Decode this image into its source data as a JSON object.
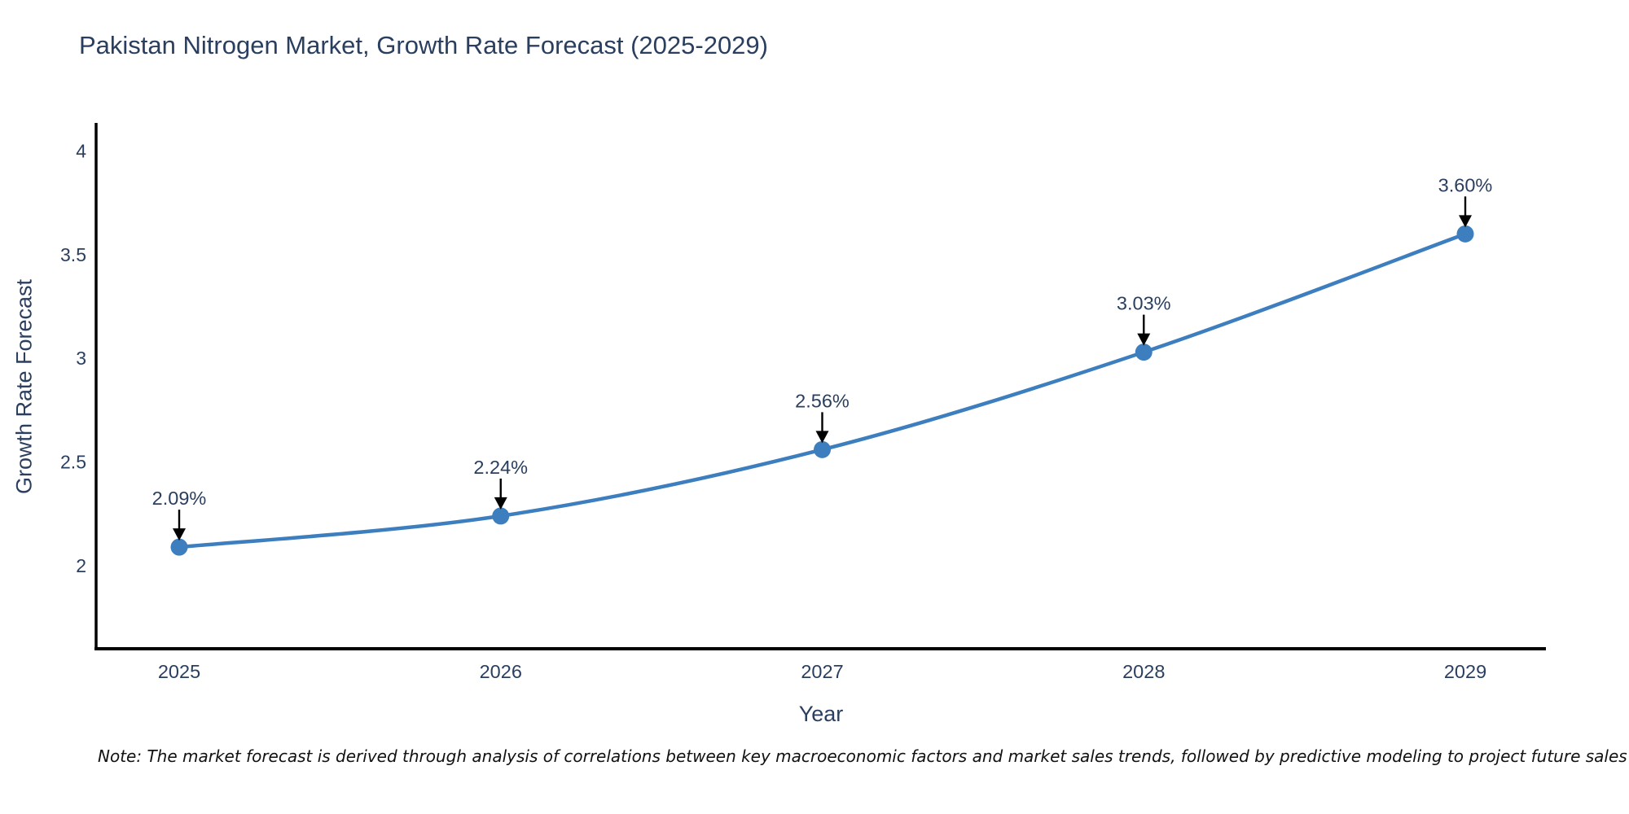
{
  "title": "Pakistan Nitrogen Market, Growth Rate Forecast (2025-2029)",
  "note": "Note: The market forecast is derived through analysis of correlations between key macroeconomic factors and market sales trends, followed by predictive modeling to project future sales",
  "colors": {
    "series_blue": "#3d7ebf",
    "text_dark": "#2a3f5f",
    "axis_line": "#000000",
    "annotation_arrow": "#000000",
    "note_text": "#111111",
    "background": "#ffffff"
  },
  "chart_data": {
    "type": "line",
    "title": "Pakistan Nitrogen Market, Growth Rate Forecast (2025-2029)",
    "xlabel": "Year",
    "ylabel": "Growth Rate Forecast",
    "categories": [
      "2025",
      "2026",
      "2027",
      "2028",
      "2029"
    ],
    "series": [
      {
        "name": "Growth Rate Forecast",
        "values": [
          2.09,
          2.24,
          2.56,
          3.03,
          3.6
        ],
        "point_labels": [
          "2.09%",
          "2.24%",
          "2.56%",
          "3.03%",
          "3.60%"
        ]
      }
    ],
    "y_ticks": [
      "2",
      "2.5",
      "3",
      "3.5",
      "4"
    ],
    "y_tick_values": [
      2,
      2.5,
      3,
      3.5,
      4
    ],
    "ylim": [
      1.6,
      4.135
    ],
    "grid": false,
    "legend_visible": false,
    "line_shape": "spline",
    "marker": "circle",
    "annotation_style": "value label above point with downward black arrow"
  }
}
